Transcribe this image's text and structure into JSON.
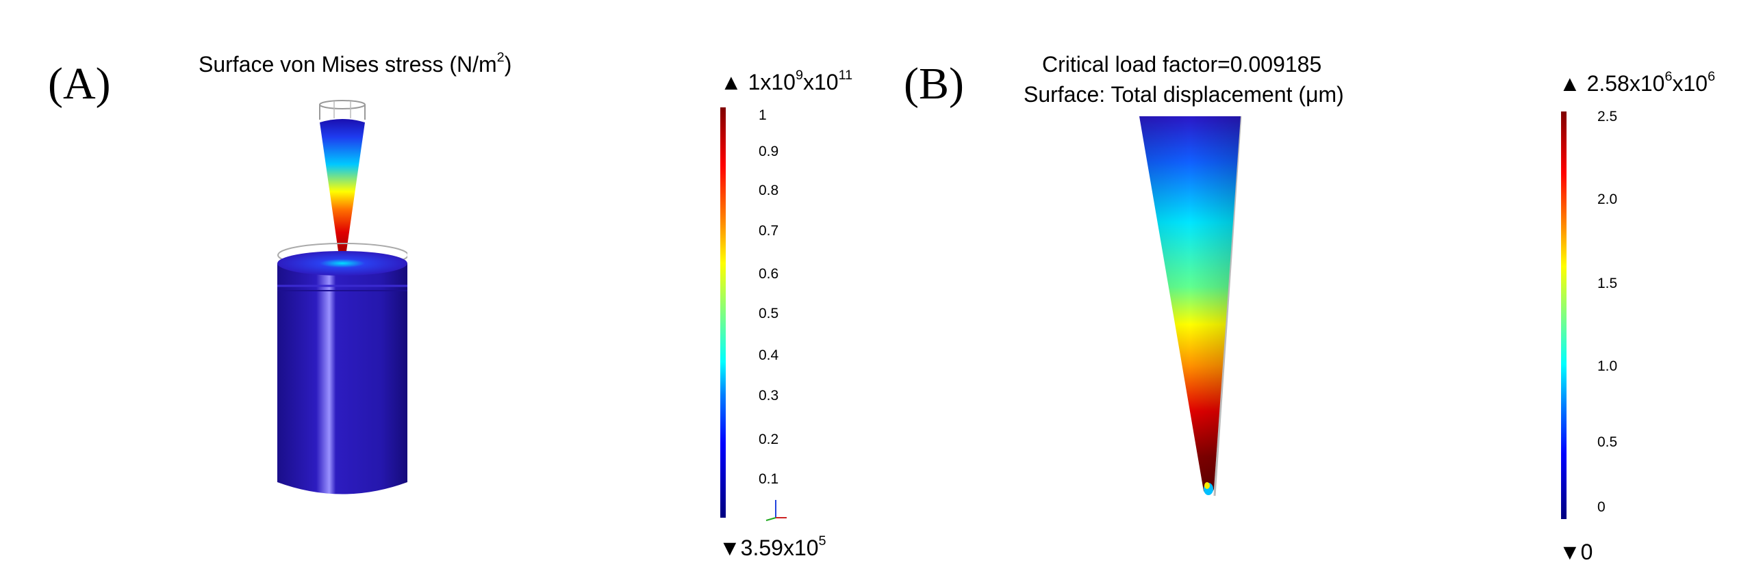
{
  "panels": [
    {
      "letter": "(A)",
      "title_main": "Surface von Mises stress (N/m",
      "title_sup": "2",
      "title_tail": ")",
      "colorbar": {
        "max_prefix": "▲ 1x10",
        "max_exp1": "9",
        "max_mid": "x10",
        "max_exp2": "11",
        "min_prefix": "▼3.59x10",
        "min_exp": "5",
        "ticks": [
          "1",
          "0.9",
          "0.8",
          "0.7",
          "0.6",
          "0.5",
          "0.4",
          "0.3",
          "0.2",
          "0.1"
        ]
      }
    },
    {
      "letter": "(B)",
      "title_line1": "Critical load factor=0.009185",
      "title_line2": "Surface: Total displacement (μm)",
      "colorbar": {
        "max_prefix": "▲ 2.58x10",
        "max_exp1": "6",
        "max_mid": "x10",
        "max_exp2": "6",
        "min_label": "▼0",
        "ticks": [
          "2.5",
          "2.0",
          "1.5",
          "1.0",
          "0.5",
          "0"
        ]
      }
    }
  ],
  "colors": {
    "jet_dark_red": "#800000",
    "jet_red": "#ff0000",
    "jet_yellow": "#ffff00",
    "jet_cyan": "#00ffff",
    "jet_blue": "#0000ff",
    "jet_dark_blue": "#00007f",
    "cylinder_blue": "#2a1aa0"
  }
}
